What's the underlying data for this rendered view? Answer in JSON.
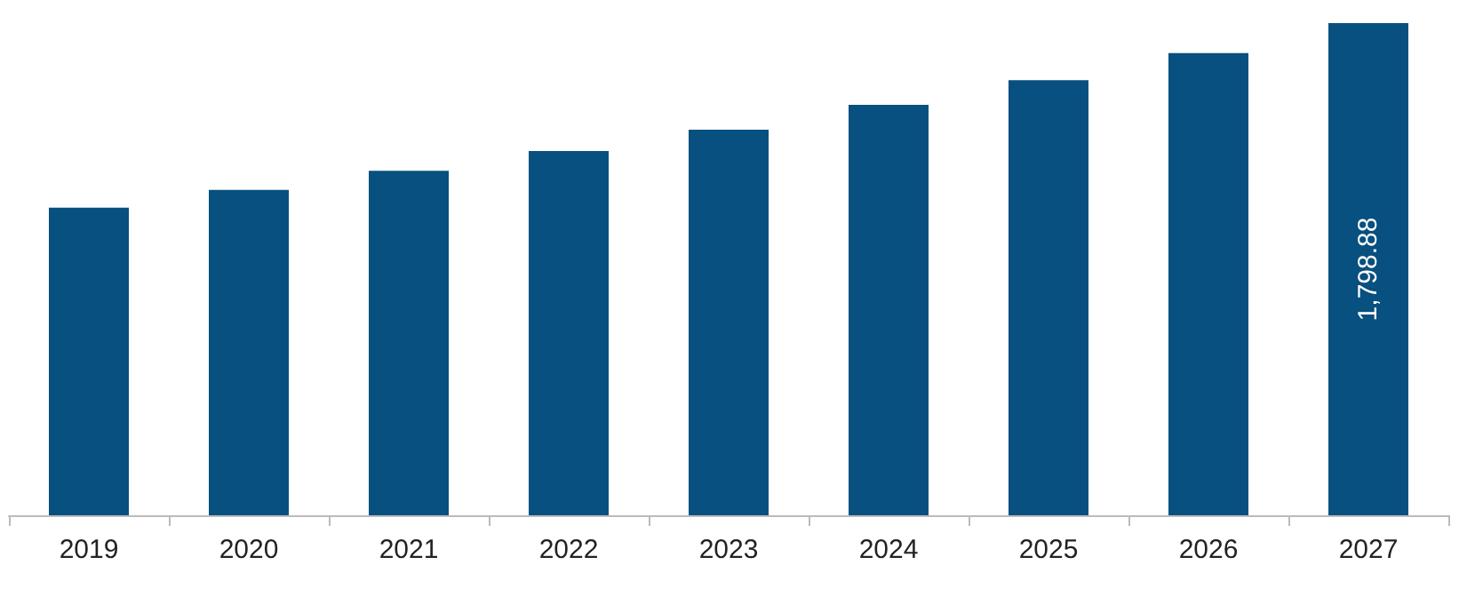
{
  "chart_data": {
    "type": "bar",
    "categories": [
      "2019",
      "2020",
      "2021",
      "2022",
      "2023",
      "2024",
      "2025",
      "2026",
      "2027"
    ],
    "values": [
      1124,
      1189,
      1259,
      1331,
      1409,
      1500,
      1590,
      1689,
      1798.88
    ],
    "value_labels": [
      null,
      null,
      null,
      null,
      null,
      null,
      null,
      null,
      "1,798.88"
    ],
    "color": "#07507f"
  }
}
